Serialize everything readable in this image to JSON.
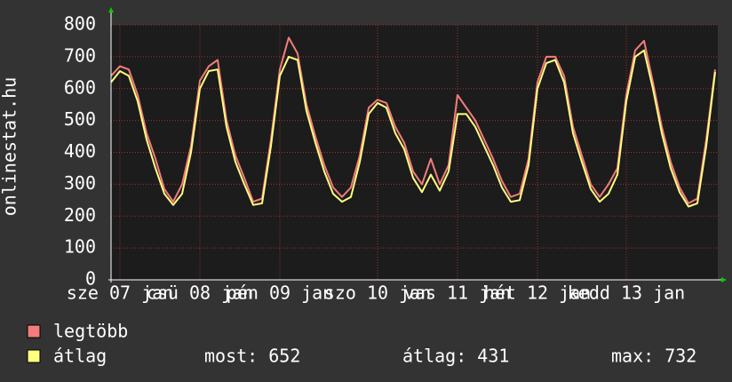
{
  "chart_data": {
    "type": "line",
    "ylabel": "onlinestat.hu",
    "categories": [
      null,
      "sze 07 jan",
      null,
      null,
      null,
      null,
      null,
      null,
      null,
      null,
      "csü 08 jan",
      null,
      null,
      null,
      null,
      null,
      null,
      null,
      null,
      "pén 09 jan",
      null,
      null,
      null,
      null,
      null,
      null,
      null,
      null,
      null,
      null,
      "szo 10 jan",
      null,
      null,
      null,
      null,
      null,
      null,
      null,
      null,
      "vas 11 jan",
      null,
      null,
      null,
      null,
      null,
      null,
      null,
      null,
      "hét 12 jan",
      null,
      null,
      null,
      null,
      null,
      null,
      null,
      null,
      null,
      "kedd 13 jan",
      null,
      null,
      null,
      null,
      null,
      null,
      null,
      null,
      null,
      null
    ],
    "series": [
      {
        "name": "legtöbb",
        "color": "#f47c7c",
        "values": [
          640,
          670,
          660,
          580,
          460,
          380,
          285,
          245,
          300,
          420,
          625,
          670,
          690,
          500,
          390,
          320,
          245,
          255,
          440,
          660,
          760,
          710,
          550,
          450,
          360,
          290,
          260,
          290,
          390,
          540,
          565,
          555,
          480,
          430,
          340,
          300,
          380,
          300,
          360,
          580,
          540,
          500,
          440,
          380,
          310,
          260,
          270,
          380,
          620,
          700,
          700,
          640,
          480,
          390,
          300,
          260,
          300,
          350,
          580,
          720,
          750,
          620,
          480,
          370,
          290,
          240,
          255,
          440,
          660
        ]
      },
      {
        "name": "átlag",
        "color": "#ffff80",
        "values": [
          620,
          655,
          640,
          560,
          440,
          350,
          270,
          235,
          270,
          400,
          600,
          655,
          660,
          480,
          370,
          300,
          235,
          240,
          420,
          640,
          700,
          690,
          530,
          430,
          340,
          270,
          245,
          260,
          370,
          520,
          555,
          540,
          460,
          410,
          320,
          275,
          330,
          280,
          340,
          520,
          520,
          480,
          420,
          360,
          290,
          245,
          250,
          360,
          600,
          680,
          690,
          620,
          460,
          370,
          285,
          245,
          270,
          330,
          560,
          700,
          720,
          600,
          460,
          350,
          275,
          230,
          240,
          420,
          652
        ]
      }
    ],
    "ylim": [
      0,
      800
    ],
    "yticks": [
      0,
      100,
      200,
      300,
      400,
      500,
      600,
      700,
      800
    ],
    "grid": true,
    "stats": [
      "most: 652",
      "átlag: 431",
      "max: 732"
    ]
  }
}
